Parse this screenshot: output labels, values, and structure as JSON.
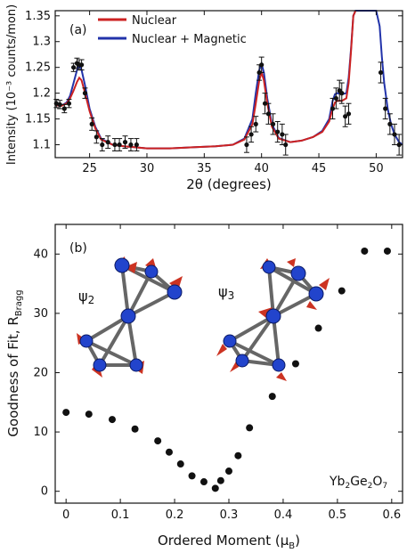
{
  "chart_data": [
    {
      "panel": "(a)",
      "type": "line",
      "xlabel": "2θ (degrees)",
      "ylabel": "Intensity (10⁻³ counts/mon)",
      "xlim": [
        22,
        52.3
      ],
      "ylim": [
        1.075,
        1.36
      ],
      "xticks": [
        25,
        30,
        35,
        40,
        45,
        50
      ],
      "yticks": [
        1.1,
        1.15,
        1.2,
        1.25,
        1.3,
        1.35
      ],
      "ytick_labels": [
        "1.1",
        "1.15",
        "1.2",
        "1.25",
        "1.3",
        "1.35"
      ],
      "legend": [
        "Nuclear",
        "Nuclear + Magnetic"
      ],
      "colors": {
        "nuclear": "#cc2222",
        "magnetic": "#2233aa",
        "points": "#111111"
      },
      "series": [
        {
          "name": "Nuclear",
          "x": [
            22.0,
            22.5,
            23.0,
            23.3,
            23.6,
            23.9,
            24.1,
            24.3,
            24.6,
            25.0,
            25.5,
            26.0,
            27.0,
            28.0,
            29.0,
            30.0,
            32.0,
            34.0,
            36.0,
            37.5,
            38.5,
            39.2,
            39.5,
            39.8,
            40.0,
            40.2,
            40.5,
            40.9,
            41.5,
            42.5,
            43.5,
            44.5,
            45.3,
            45.9,
            46.2,
            46.4,
            46.6,
            47.0,
            47.4,
            47.6,
            47.8,
            48.0,
            48.2
          ],
          "y": [
            1.177,
            1.175,
            1.18,
            1.19,
            1.205,
            1.222,
            1.23,
            1.225,
            1.2,
            1.165,
            1.132,
            1.11,
            1.1,
            1.097,
            1.095,
            1.093,
            1.093,
            1.095,
            1.097,
            1.1,
            1.11,
            1.14,
            1.18,
            1.225,
            1.24,
            1.225,
            1.18,
            1.135,
            1.112,
            1.105,
            1.108,
            1.115,
            1.125,
            1.145,
            1.17,
            1.182,
            1.185,
            1.185,
            1.19,
            1.22,
            1.28,
            1.35,
            1.36
          ]
        },
        {
          "name": "Nuclear + Magnetic",
          "x": [
            22.0,
            22.5,
            23.0,
            23.3,
            23.6,
            23.9,
            24.1,
            24.3,
            24.6,
            25.0,
            25.5,
            26.0,
            27.0,
            28.0,
            29.0,
            30.0,
            32.0,
            34.0,
            36.0,
            37.5,
            38.5,
            39.2,
            39.5,
            39.8,
            40.0,
            40.2,
            40.5,
            40.9,
            41.5,
            42.5,
            43.5,
            44.5,
            45.3,
            45.9,
            46.2,
            46.4,
            46.6,
            47.0,
            47.4,
            47.6,
            47.8,
            48.0,
            48.2,
            50.0,
            50.3,
            50.5,
            50.7,
            51.0,
            51.3,
            51.6,
            52.0,
            52.3
          ],
          "y": [
            1.177,
            1.175,
            1.182,
            1.195,
            1.22,
            1.245,
            1.255,
            1.245,
            1.215,
            1.17,
            1.135,
            1.112,
            1.1,
            1.097,
            1.095,
            1.093,
            1.093,
            1.095,
            1.097,
            1.1,
            1.112,
            1.15,
            1.2,
            1.245,
            1.257,
            1.24,
            1.19,
            1.14,
            1.113,
            1.105,
            1.108,
            1.115,
            1.127,
            1.15,
            1.185,
            1.198,
            1.2,
            1.198,
            1.2,
            1.23,
            1.285,
            1.35,
            1.36,
            1.36,
            1.33,
            1.27,
            1.22,
            1.17,
            1.14,
            1.12,
            1.105,
            1.1
          ]
        },
        {
          "name": "",
          "kind": "points",
          "x": [
            22.1,
            22.4,
            22.8,
            23.2,
            23.6,
            23.9,
            24.1,
            24.3,
            24.6,
            25.2,
            25.6,
            26.1,
            26.6,
            27.2,
            27.6,
            28.1,
            28.6,
            29.1,
            38.7,
            39.1,
            39.5,
            39.8,
            40.0,
            40.3,
            40.6,
            41.0,
            41.4,
            41.8,
            42.1,
            46.2,
            46.5,
            46.8,
            47.0,
            47.3,
            47.6,
            50.4,
            50.8,
            51.2,
            51.6,
            52.0
          ],
          "y": [
            1.18,
            1.178,
            1.17,
            1.18,
            1.25,
            1.258,
            1.255,
            1.255,
            1.2,
            1.14,
            1.115,
            1.1,
            1.105,
            1.1,
            1.1,
            1.105,
            1.1,
            1.1,
            1.1,
            1.12,
            1.14,
            1.24,
            1.255,
            1.18,
            1.16,
            1.14,
            1.125,
            1.12,
            1.1,
            1.17,
            1.19,
            1.205,
            1.2,
            1.155,
            1.16,
            1.24,
            1.17,
            1.14,
            1.12,
            1.1
          ],
          "yerr": [
            0.008,
            0.008,
            0.008,
            0.008,
            0.008,
            0.01,
            0.01,
            0.01,
            0.01,
            0.012,
            0.012,
            0.012,
            0.012,
            0.012,
            0.012,
            0.012,
            0.012,
            0.012,
            0.015,
            0.015,
            0.015,
            0.015,
            0.015,
            0.02,
            0.02,
            0.02,
            0.02,
            0.02,
            0.02,
            0.02,
            0.02,
            0.02,
            0.02,
            0.02,
            0.02,
            0.02,
            0.02,
            0.02,
            0.02,
            0.02
          ]
        }
      ]
    },
    {
      "panel": "(b)",
      "type": "scatter",
      "xlabel": "Ordered Moment (μ",
      "xlabel_sub": "B",
      "xlabel_end": ")",
      "ylabel": "Goodness of Fit, R",
      "ylabel_sub": "Bragg",
      "xlim": [
        -0.02,
        0.62
      ],
      "ylim": [
        -2,
        45
      ],
      "xticks": [
        0,
        0.1,
        0.2,
        0.3,
        0.4,
        0.5,
        0.6
      ],
      "xtick_labels": [
        "0",
        "0.1",
        "0.2",
        "0.3",
        "0.4",
        "0.5",
        "0.6"
      ],
      "yticks": [
        0,
        10,
        20,
        30,
        40
      ],
      "compound": [
        "Yb",
        "2",
        "Ge",
        "2",
        "O",
        "7"
      ],
      "structure_labels": [
        "ψ",
        "2",
        "ψ",
        "3"
      ],
      "series": [
        {
          "name": "",
          "x": [
            0.0,
            0.042,
            0.085,
            0.127,
            0.169,
            0.19,
            0.211,
            0.232,
            0.254,
            0.275,
            0.285,
            0.3,
            0.317,
            0.338,
            0.38,
            0.423,
            0.465,
            0.508,
            0.55,
            0.592
          ],
          "y": [
            13.3,
            13.0,
            12.1,
            10.5,
            8.5,
            6.6,
            4.6,
            2.6,
            1.6,
            0.5,
            1.8,
            3.4,
            6.0,
            10.7,
            16.0,
            21.5,
            27.5,
            33.8,
            40.5,
            40.5
          ]
        }
      ]
    }
  ]
}
